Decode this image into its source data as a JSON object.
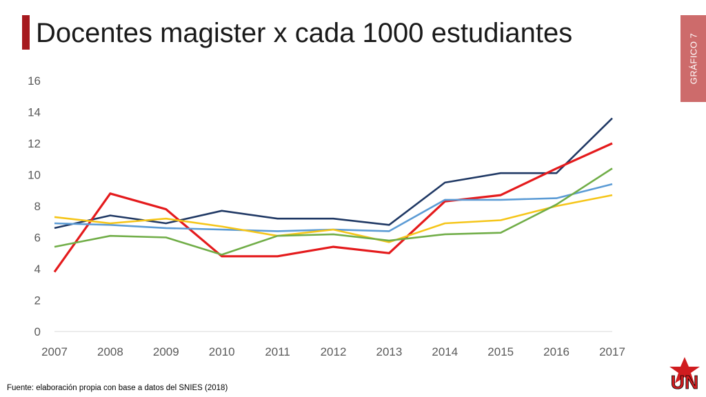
{
  "header": {
    "title": "Docentes magister x cada 1000 estudiantes",
    "tab_label": "GRÁFICO 7"
  },
  "footer": {
    "source": "Fuente: elaboración propia con base a datos del SNIES (2018)",
    "logo_text": "UN"
  },
  "colors": {
    "accent": "#a6191e",
    "tab": "#cd6b6b",
    "navy": "#1f3864",
    "red": "#e41a1c",
    "blue": "#5b9bd5",
    "yellow": "#f5c518",
    "green": "#70ad47"
  },
  "chart_data": {
    "type": "line",
    "title": "",
    "xlabel": "",
    "ylabel": "",
    "categories": [
      "2007",
      "2008",
      "2009",
      "2010",
      "2011",
      "2012",
      "2013",
      "2014",
      "2015",
      "2016",
      "2017"
    ],
    "ylim": [
      0,
      16
    ],
    "yticks": [
      "0",
      "2",
      "4",
      "6",
      "8",
      "10",
      "12",
      "14",
      "16"
    ],
    "grid": "horizontal baseline only",
    "legend": "none",
    "series": [
      {
        "color": "#1f3864",
        "values": [
          6.6,
          7.4,
          6.9,
          7.7,
          7.2,
          7.2,
          6.8,
          9.5,
          10.1,
          10.1,
          13.6
        ]
      },
      {
        "color": "#e41a1c",
        "values": [
          3.8,
          8.8,
          7.8,
          4.8,
          4.8,
          5.4,
          5.0,
          8.3,
          8.7,
          10.4,
          12.0
        ]
      },
      {
        "color": "#5b9bd5",
        "values": [
          6.9,
          6.8,
          6.6,
          6.5,
          6.4,
          6.5,
          6.4,
          8.4,
          8.4,
          8.5,
          9.4
        ]
      },
      {
        "color": "#f5c518",
        "values": [
          7.3,
          6.9,
          7.2,
          6.7,
          6.1,
          6.5,
          5.7,
          6.9,
          7.1,
          8.0,
          8.7
        ]
      },
      {
        "color": "#70ad47",
        "values": [
          5.4,
          6.1,
          6.0,
          4.9,
          6.1,
          6.2,
          5.8,
          6.2,
          6.3,
          8.1,
          10.4
        ]
      }
    ]
  }
}
